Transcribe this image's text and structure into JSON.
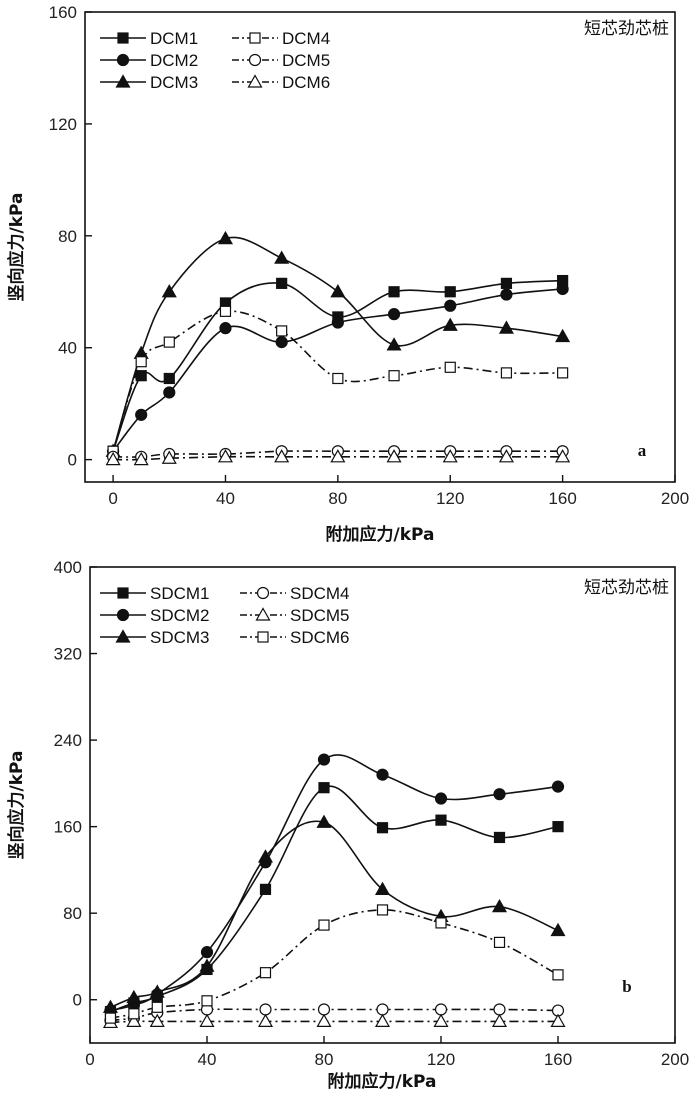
{
  "chart_data": [
    {
      "type": "line",
      "panel": "a",
      "annotation": "短芯劲芯桩",
      "xlabel": "附加应力/kPa",
      "ylabel": "竖向应力/kPa",
      "xlim": [
        -10,
        200
      ],
      "ylim": [
        -8,
        160
      ],
      "xticks": [
        0,
        40,
        80,
        120,
        160,
        200
      ],
      "yticks": [
        0,
        40,
        80,
        120,
        160
      ],
      "series": [
        {
          "name": "DCM1",
          "marker": "square-filled",
          "style": "solid",
          "x": [
            0,
            10,
            20,
            40,
            60,
            80,
            100,
            120,
            140,
            160
          ],
          "y": [
            3,
            30,
            29,
            56,
            63,
            51,
            60,
            60,
            63,
            64
          ]
        },
        {
          "name": "DCM2",
          "marker": "circle-filled",
          "style": "solid",
          "x": [
            0,
            10,
            20,
            40,
            60,
            80,
            100,
            120,
            140,
            160
          ],
          "y": [
            3,
            16,
            24,
            47,
            42,
            49,
            52,
            55,
            59,
            61
          ]
        },
        {
          "name": "DCM3",
          "marker": "triangle-filled",
          "style": "solid",
          "x": [
            0,
            10,
            20,
            40,
            60,
            80,
            100,
            120,
            140,
            160
          ],
          "y": [
            3,
            38,
            60,
            79,
            72,
            60,
            41,
            48,
            47,
            44
          ]
        },
        {
          "name": "DCM4",
          "marker": "square-open",
          "style": "dashdot",
          "x": [
            0,
            10,
            20,
            40,
            60,
            80,
            100,
            120,
            140,
            160
          ],
          "y": [
            3,
            35,
            42,
            53,
            46,
            29,
            30,
            33,
            31,
            31
          ]
        },
        {
          "name": "DCM5",
          "marker": "circle-open",
          "style": "dashdot",
          "x": [
            0,
            10,
            20,
            40,
            60,
            80,
            100,
            120,
            140,
            160
          ],
          "y": [
            1,
            1,
            2,
            2,
            3,
            3,
            3,
            3,
            3,
            3
          ]
        },
        {
          "name": "DCM6",
          "marker": "triangle-open",
          "style": "dashdot",
          "x": [
            0,
            10,
            20,
            40,
            60,
            80,
            100,
            120,
            140,
            160
          ],
          "y": [
            0,
            0,
            0.5,
            1,
            1,
            1,
            1,
            1,
            1,
            1
          ]
        }
      ]
    },
    {
      "type": "line",
      "panel": "b",
      "annotation": "短芯劲芯桩",
      "xlabel": "附加应力/kPa",
      "ylabel": "竖向应力/kPa",
      "xlim": [
        0,
        200
      ],
      "ylim": [
        -40,
        400
      ],
      "xticks": [
        0,
        40,
        80,
        120,
        160,
        200
      ],
      "yticks": [
        0,
        80,
        160,
        240,
        320,
        400
      ],
      "series": [
        {
          "name": "SDCM1",
          "marker": "square-filled",
          "style": "solid",
          "x": [
            7,
            15,
            23,
            40,
            60,
            80,
            100,
            120,
            140,
            160
          ],
          "y": [
            -11,
            -3,
            3,
            28,
            102,
            196,
            159,
            166,
            150,
            160
          ]
        },
        {
          "name": "SDCM2",
          "marker": "circle-filled",
          "style": "solid",
          "x": [
            7,
            15,
            23,
            40,
            60,
            80,
            100,
            120,
            140,
            160
          ],
          "y": [
            -10,
            -5,
            5,
            44,
            127,
            222,
            208,
            186,
            190,
            197
          ]
        },
        {
          "name": "SDCM3",
          "marker": "triangle-filled",
          "style": "solid",
          "x": [
            7,
            15,
            23,
            40,
            60,
            80,
            100,
            120,
            140,
            160
          ],
          "y": [
            -7,
            2,
            7,
            31,
            132,
            164,
            102,
            77,
            86,
            64
          ]
        },
        {
          "name": "SDCM4",
          "marker": "circle-open",
          "style": "dashdot",
          "x": [
            7,
            15,
            23,
            40,
            60,
            80,
            100,
            120,
            140,
            160
          ],
          "y": [
            -19,
            -17,
            -12,
            -9,
            -9,
            -9,
            -9,
            -9,
            -9,
            -10
          ]
        },
        {
          "name": "SDCM5",
          "marker": "triangle-open",
          "style": "dashdot",
          "x": [
            7,
            15,
            23,
            40,
            60,
            80,
            100,
            120,
            140,
            160
          ],
          "y": [
            -21,
            -20,
            -20,
            -20,
            -20,
            -20,
            -20,
            -20,
            -20,
            -20
          ]
        },
        {
          "name": "SDCM6",
          "marker": "square-open",
          "style": "dashdot",
          "x": [
            7,
            15,
            23,
            40,
            60,
            80,
            100,
            120,
            140,
            160
          ],
          "y": [
            -17,
            -13,
            -7,
            -1,
            25,
            69,
            83,
            71,
            53,
            23
          ]
        }
      ]
    }
  ]
}
